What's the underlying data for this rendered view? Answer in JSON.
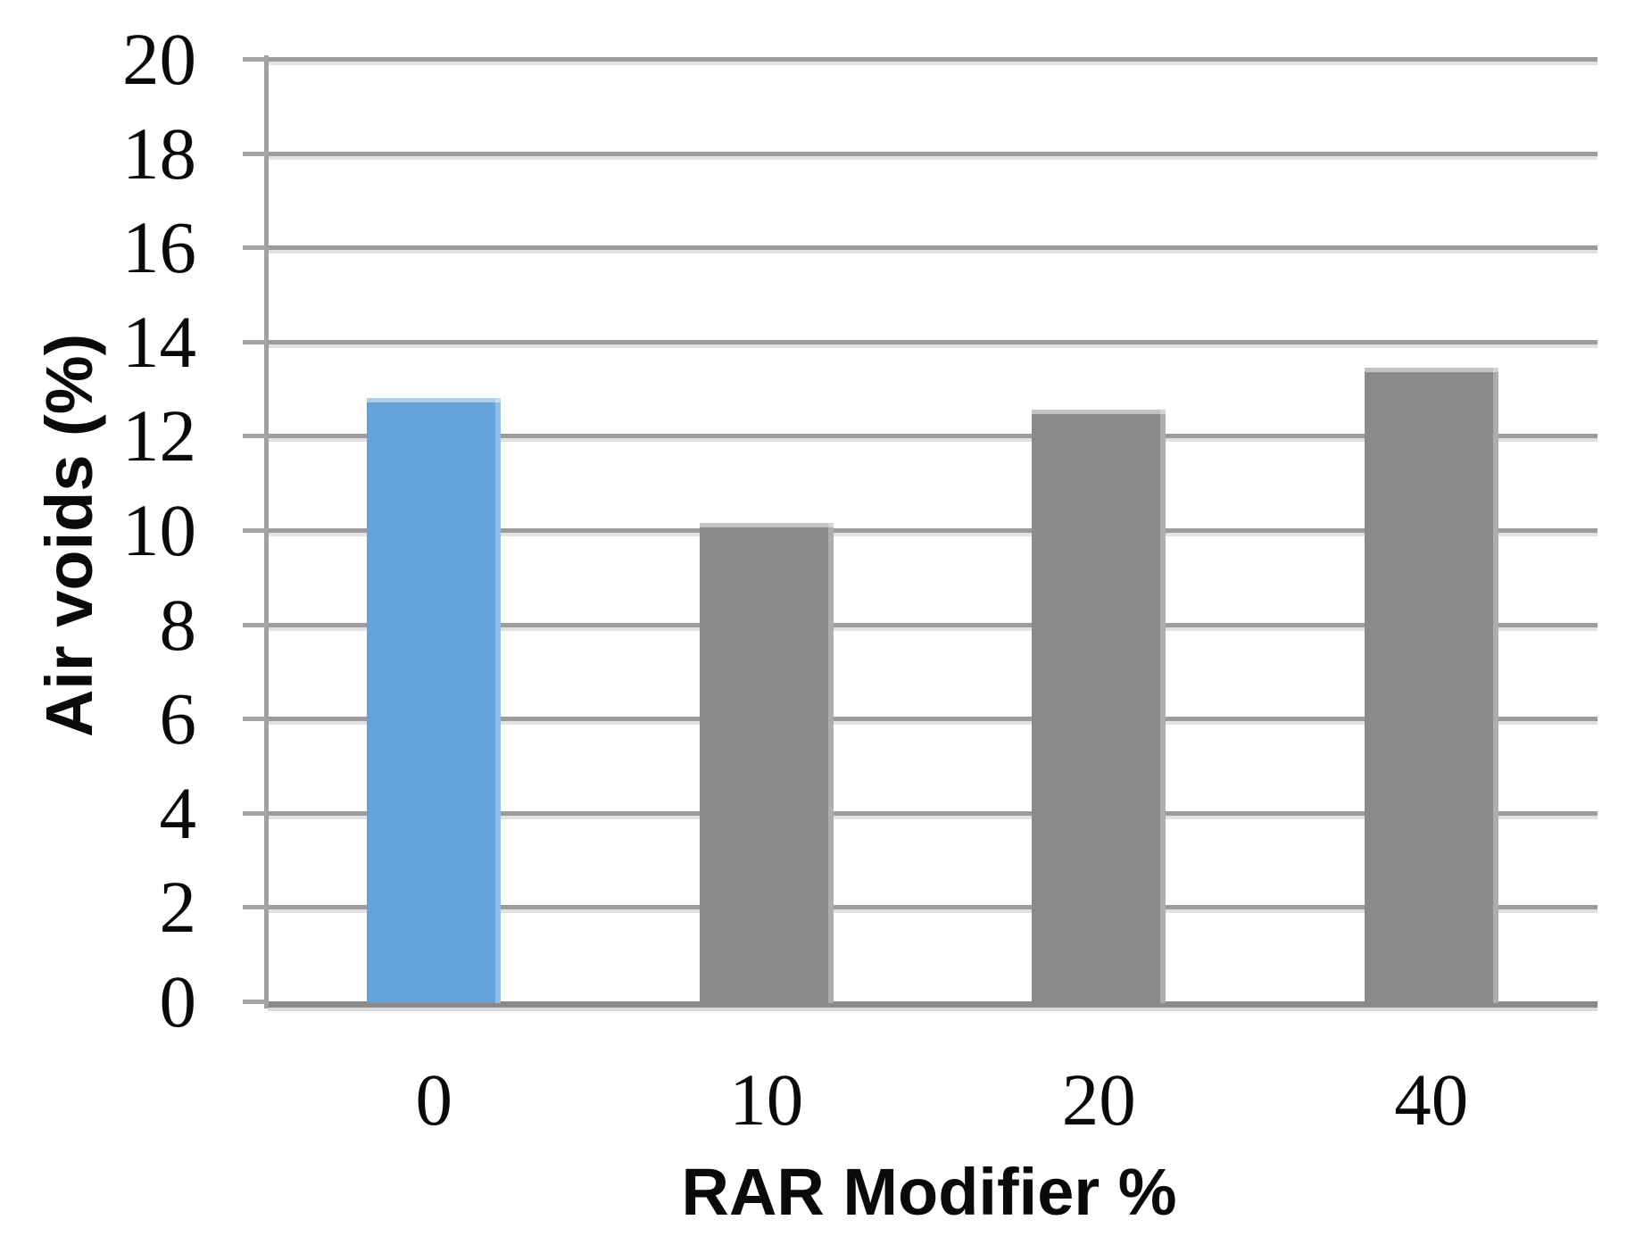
{
  "chart_data": {
    "type": "bar",
    "title": "",
    "xlabel": "RAR Modifier %",
    "ylabel": "Air voids (%)",
    "categories": [
      "0",
      "10",
      "20",
      "40"
    ],
    "values": [
      12.8,
      10.15,
      12.55,
      13.45
    ],
    "series": [
      {
        "name": "Air voids (%)",
        "values": [
          12.8,
          10.15,
          12.55,
          13.45
        ]
      }
    ],
    "bar_colors": [
      "#63A2DC",
      "#8A8A8A",
      "#8A8A8A",
      "#8A8A8A"
    ],
    "highlighted_category": "0",
    "ylim": [
      0,
      20
    ],
    "ytick_interval": 2,
    "ytick_labels": [
      "0",
      "2",
      "4",
      "6",
      "8",
      "10",
      "12",
      "14",
      "16",
      "18",
      "20"
    ],
    "grid": "horizontal",
    "legend": "none",
    "styles": {
      "highlight_bar_color": "#63A2DC",
      "default_bar_color": "#8A8A8A",
      "gridline_color": "#9C9C9C",
      "gridline_shadow_color": "#E2E2E2",
      "axis_line_color": "#A0A0A0",
      "tick_mark_color": "#A4A4A4",
      "baseline_color": "#8A8A8A",
      "baseline_shadow_color": "#DCDCDC",
      "text_color": "#0A0A0A",
      "background_color": "#FFFFFF"
    }
  }
}
